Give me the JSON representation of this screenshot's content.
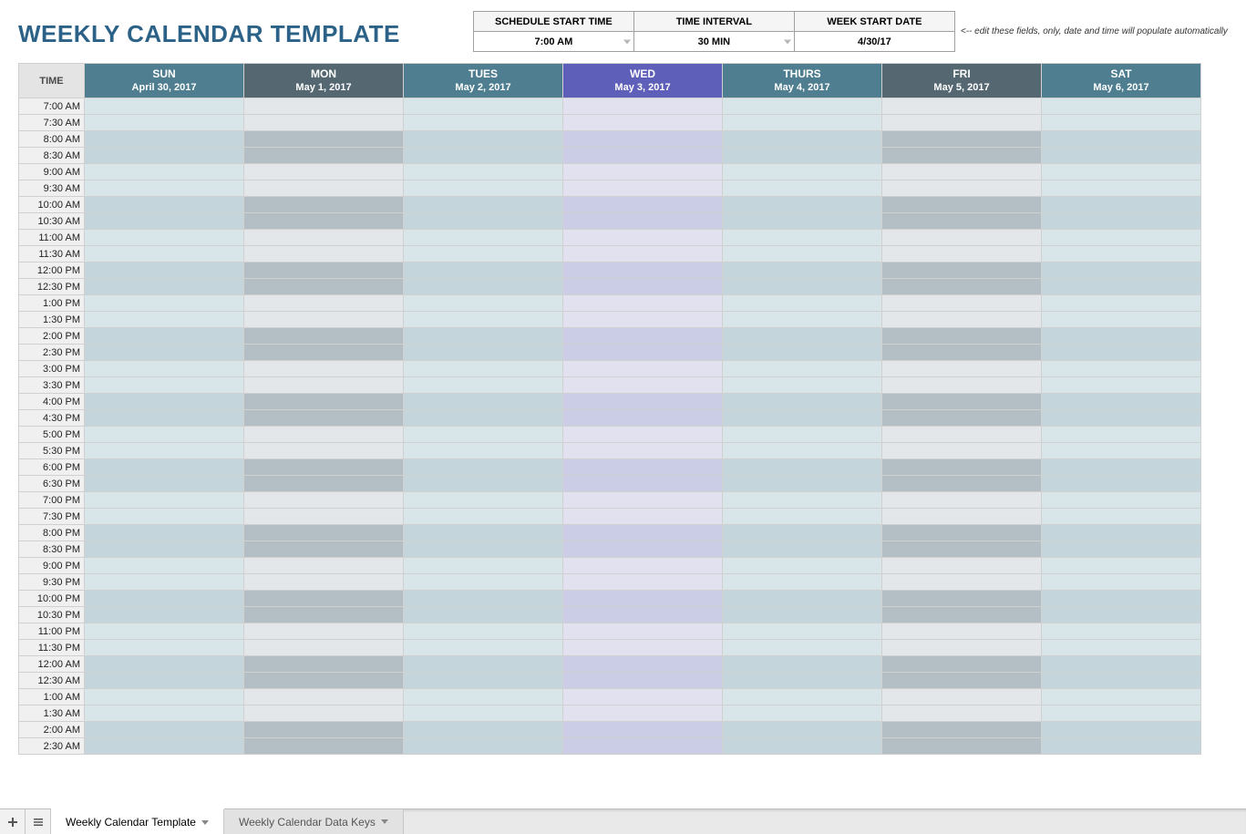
{
  "title": "WEEKLY CALENDAR TEMPLATE",
  "controls": {
    "headers": [
      "SCHEDULE START TIME",
      "TIME INTERVAL",
      "WEEK START DATE"
    ],
    "values": [
      "7:00 AM",
      "30 MIN",
      "4/30/17"
    ],
    "hint": "<-- edit these fields, only, date and time will populate automatically"
  },
  "calendar": {
    "time_header": "TIME",
    "days": [
      {
        "name": "SUN",
        "date": "April 30, 2017",
        "bg": "#4e7e8f",
        "cells": [
          "#d8e5e9",
          "#c4d6db"
        ]
      },
      {
        "name": "MON",
        "date": "May 1, 2017",
        "bg": "#556872",
        "cells": [
          "#e3e7e9",
          "#b3bfc4"
        ]
      },
      {
        "name": "TUES",
        "date": "May 2, 2017",
        "bg": "#4e7e8f",
        "cells": [
          "#d8e5e9",
          "#c4d6db"
        ]
      },
      {
        "name": "WED",
        "date": "May 3, 2017",
        "bg": "#5d5fb8",
        "cells": [
          "#e1e1f0",
          "#cbcce6"
        ]
      },
      {
        "name": "THURS",
        "date": "May 4, 2017",
        "bg": "#4e7e8f",
        "cells": [
          "#d8e5e9",
          "#c4d6db"
        ]
      },
      {
        "name": "FRI",
        "date": "May 5, 2017",
        "bg": "#556872",
        "cells": [
          "#e3e7e9",
          "#b3bfc4"
        ]
      },
      {
        "name": "SAT",
        "date": "May 6, 2017",
        "bg": "#4e7e8f",
        "cells": [
          "#d8e5e9",
          "#c4d6db"
        ]
      }
    ],
    "times": [
      "7:00 AM",
      "7:30 AM",
      "8:00 AM",
      "8:30 AM",
      "9:00 AM",
      "9:30 AM",
      "10:00 AM",
      "10:30 AM",
      "11:00 AM",
      "11:30 AM",
      "12:00 PM",
      "12:30 PM",
      "1:00 PM",
      "1:30 PM",
      "2:00 PM",
      "2:30 PM",
      "3:00 PM",
      "3:30 PM",
      "4:00 PM",
      "4:30 PM",
      "5:00 PM",
      "5:30 PM",
      "6:00 PM",
      "6:30 PM",
      "7:00 PM",
      "7:30 PM",
      "8:00 PM",
      "8:30 PM",
      "9:00 PM",
      "9:30 PM",
      "10:00 PM",
      "10:30 PM",
      "11:00 PM",
      "11:30 PM",
      "12:00 AM",
      "12:30 AM",
      "1:00 AM",
      "1:30 AM",
      "2:00 AM",
      "2:30 AM"
    ],
    "time_head_bg": "#e4e4e4",
    "time_cell_bg": "#f0f0f0",
    "border_color": "#d0d0d0"
  },
  "tabs": {
    "sheets": [
      {
        "label": "Weekly Calendar Template",
        "active": true
      },
      {
        "label": "Weekly Calendar Data Keys",
        "active": false
      }
    ]
  }
}
